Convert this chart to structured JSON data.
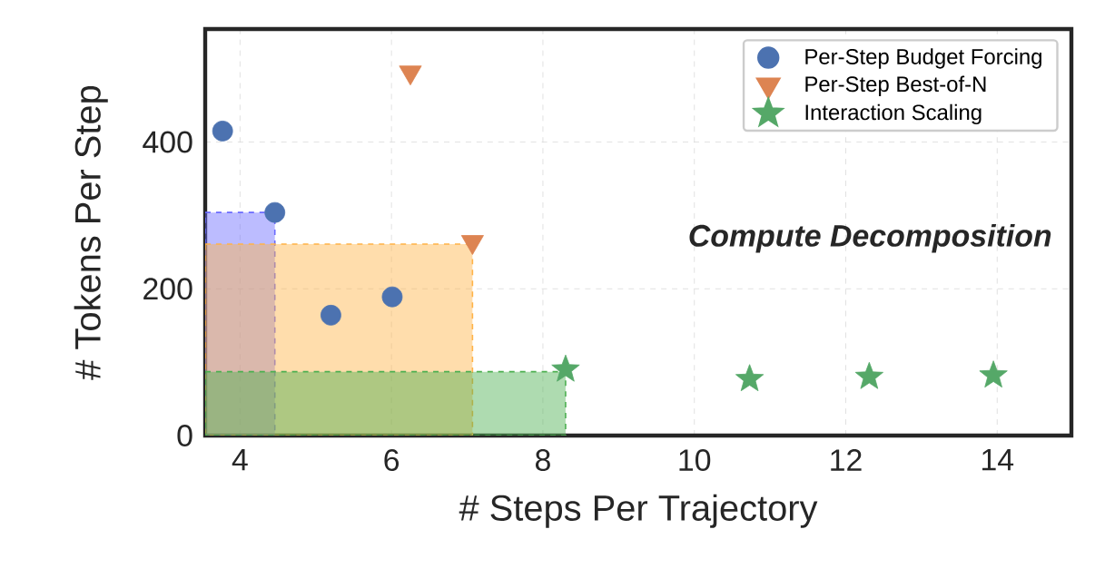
{
  "chart_data": {
    "type": "scatter",
    "xlabel": "# Steps Per Trajectory",
    "ylabel": "# Tokens Per Step",
    "xlim": [
      3.54,
      14.98
    ],
    "ylim": [
      0,
      554
    ],
    "xticks": [
      4,
      6,
      8,
      10,
      12,
      14
    ],
    "yticks": [
      0,
      200,
      400
    ],
    "grid": true,
    "legend": "top right",
    "annotations": [
      "Compute Decomposition"
    ],
    "series": [
      {
        "type": "area",
        "color": "#6a6aff",
        "line_style": "dashed",
        "x": [
          3.54,
          4.46
        ],
        "values": [
          304,
          304
        ]
      },
      {
        "type": "area",
        "color": "#ffb347",
        "line_style": "dashed",
        "x": [
          3.54,
          7.07
        ],
        "values": [
          261,
          261
        ]
      },
      {
        "type": "area",
        "color": "#4caf50",
        "line_style": "dashed",
        "x": [
          3.54,
          8.3
        ],
        "values": [
          87,
          87
        ]
      },
      {
        "name": "Per-Step Budget Forcing",
        "color": "#4c72b0",
        "marker": "circle",
        "x": [
          3.77,
          4.46,
          5.2,
          6.01
        ],
        "values": [
          415,
          304,
          164,
          189
        ]
      },
      {
        "name": "Per-Step Best-of-N",
        "color": "#dd8452",
        "marker": "triangle",
        "x": [
          6.25,
          7.07
        ],
        "values": [
          495,
          264
        ]
      },
      {
        "name": "Interaction Scaling",
        "color": "#55a868",
        "marker": "star",
        "x": [
          8.3,
          10.73,
          12.31,
          13.95
        ],
        "values": [
          90,
          77,
          80,
          82
        ]
      }
    ]
  }
}
